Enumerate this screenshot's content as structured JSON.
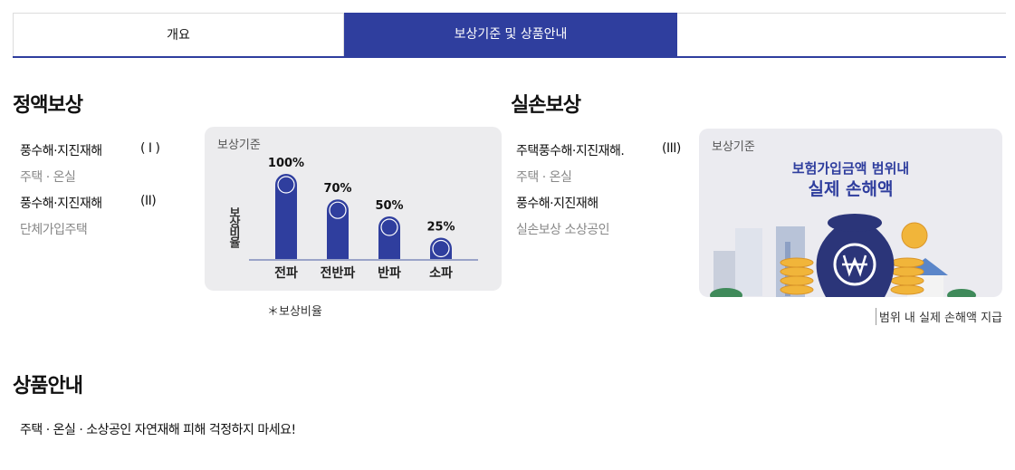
{
  "tabs": [
    "개요",
    "보상기준 및 상품안내"
  ],
  "fixed": {
    "title": "정액보상",
    "items": [
      {
        "label": "풍수해·지진재해",
        "tag": "( I )"
      },
      {
        "label": "주택 · 온실"
      },
      {
        "label": "풍수해·지진재해",
        "tag": "(II)"
      },
      {
        "label": "단체가입주택"
      }
    ],
    "chart": {
      "type": "bar",
      "heading": "보상기준",
      "axis_label": "보상비율",
      "categories": [
        "전파",
        "전반파",
        "반파",
        "소파"
      ],
      "values": [
        100,
        70,
        50,
        25
      ],
      "value_labels": [
        "100%",
        "70%",
        "50%",
        "25%"
      ],
      "color": "#2f3e9e"
    },
    "caption": "＊보상비율"
  },
  "actual": {
    "title": "실손보상",
    "items": [
      {
        "label": "주택풍수해·지진재해.",
        "tag": "(III)"
      },
      {
        "label": "주택 · 온실"
      },
      {
        "label": "풍수해·지진재해"
      },
      {
        "label": "실손보상 소상공인"
      }
    ],
    "image": {
      "heading": "보상기준",
      "line1": "보험가입금액 범위내",
      "line2": "실제 손해액"
    },
    "caption": "범위 내 실제 손해액 지급"
  },
  "products": {
    "title": "상품안내",
    "text": "주택 · 온실 · 소상공인 자연재해 피해 걱정하지 마세요!"
  }
}
